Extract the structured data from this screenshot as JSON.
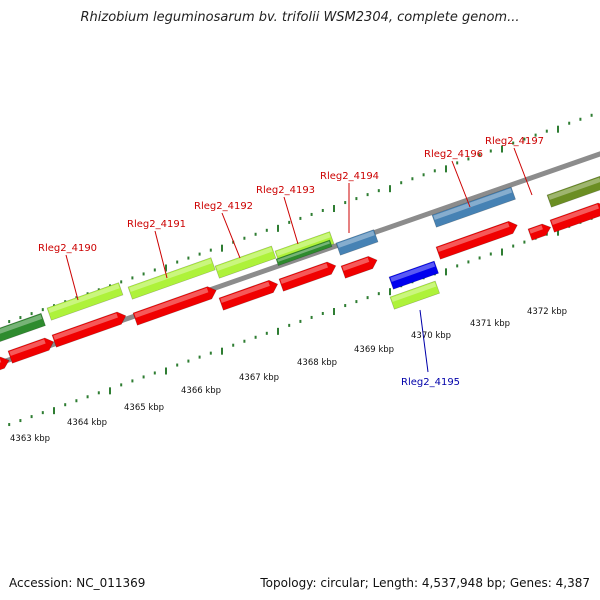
{
  "title": "Rhizobium leguminosarum bv. trifolii WSM2304, complete genom...",
  "footer": {
    "accession": "Accession: NC_011369",
    "summary": "Topology: circular; Length: 4,537,948 bp; Genes: 4,387"
  },
  "colors": {
    "forward_cds": "#aef23a",
    "reverse_cds": "#f00000",
    "dark_green": "#2e8b2e",
    "olive": "#6b8e23",
    "steel_blue": "#4682b4",
    "blue": "#0000ee",
    "backbone": "#8c8c8c",
    "tick": "#2e7d32",
    "label_red": "#cc0000",
    "label_blue": "#0000aa"
  },
  "scale_labels": [
    "4363 kbp",
    "4364 kbp",
    "4365 kbp",
    "4366 kbp",
    "4367 kbp",
    "4368 kbp",
    "4369 kbp",
    "4370 kbp",
    "4371 kbp",
    "4372 kbp"
  ],
  "gene_labels": [
    {
      "text": "Rleg2_4190",
      "color": "label_red"
    },
    {
      "text": "Rleg2_4191",
      "color": "label_red"
    },
    {
      "text": "Rleg2_4192",
      "color": "label_red"
    },
    {
      "text": "Rleg2_4193",
      "color": "label_red"
    },
    {
      "text": "Rleg2_4194",
      "color": "label_red"
    },
    {
      "text": "Rleg2_4196",
      "color": "label_red"
    },
    {
      "text": "Rleg2_4197",
      "color": "label_red"
    },
    {
      "text": "Rleg2_4195",
      "color": "label_blue"
    }
  ]
}
